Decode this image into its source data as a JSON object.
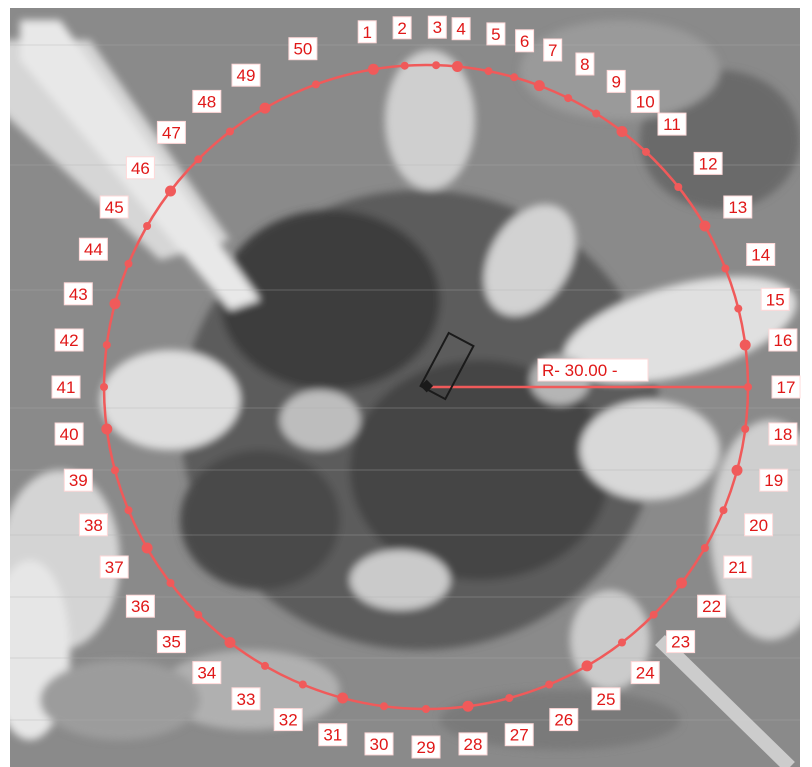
{
  "image": {
    "description_kind": "grayscale aerial photo with circular sampling overlay",
    "overlay_color": "#f05a5a",
    "label_color": "#e01818",
    "label_bg": "#ffffff"
  },
  "circle": {
    "radius_label": "R- 30.00 -"
  },
  "points": [
    {
      "label": "1",
      "angle_deg": -99.4
    },
    {
      "label": "2",
      "angle_deg": -93.8
    },
    {
      "label": "3",
      "angle_deg": -88.2
    },
    {
      "label": "4",
      "angle_deg": -84.4
    },
    {
      "label": "5",
      "angle_deg": -78.8
    },
    {
      "label": "6",
      "angle_deg": -74.1
    },
    {
      "label": "7",
      "angle_deg": -69.4
    },
    {
      "label": "8",
      "angle_deg": -63.8
    },
    {
      "label": "9",
      "angle_deg": -58.1
    },
    {
      "label": "10",
      "angle_deg": -52.5
    },
    {
      "label": "11",
      "angle_deg": -46.9
    },
    {
      "label": "12",
      "angle_deg": -38.4
    },
    {
      "label": "13",
      "angle_deg": -30.0
    },
    {
      "label": "14",
      "angle_deg": -21.6
    },
    {
      "label": "15",
      "angle_deg": -14.1
    },
    {
      "label": "16",
      "angle_deg": -7.5
    },
    {
      "label": "17",
      "angle_deg": 0.0
    },
    {
      "label": "18",
      "angle_deg": 7.5
    },
    {
      "label": "19",
      "angle_deg": 15.0
    },
    {
      "label": "20",
      "angle_deg": 22.5
    },
    {
      "label": "21",
      "angle_deg": 30.0
    },
    {
      "label": "22",
      "angle_deg": 37.5
    },
    {
      "label": "23",
      "angle_deg": 45.0
    },
    {
      "label": "24",
      "angle_deg": 52.5
    },
    {
      "label": "25",
      "angle_deg": 60.0
    },
    {
      "label": "26",
      "angle_deg": 67.5
    },
    {
      "label": "27",
      "angle_deg": 75.0
    },
    {
      "label": "28",
      "angle_deg": 82.5
    },
    {
      "label": "29",
      "angle_deg": 90.0
    },
    {
      "label": "30",
      "angle_deg": 97.5
    },
    {
      "label": "31",
      "angle_deg": 105.0
    },
    {
      "label": "32",
      "angle_deg": 112.5
    },
    {
      "label": "33",
      "angle_deg": 120.0
    },
    {
      "label": "34",
      "angle_deg": 127.5
    },
    {
      "label": "35",
      "angle_deg": 135.0
    },
    {
      "label": "36",
      "angle_deg": 142.5
    },
    {
      "label": "37",
      "angle_deg": 150.0
    },
    {
      "label": "38",
      "angle_deg": 157.5
    },
    {
      "label": "39",
      "angle_deg": 165.0
    },
    {
      "label": "40",
      "angle_deg": 172.5
    },
    {
      "label": "41",
      "angle_deg": 180.0
    },
    {
      "label": "42",
      "angle_deg": 187.5
    },
    {
      "label": "43",
      "angle_deg": 195.0
    },
    {
      "label": "44",
      "angle_deg": 202.5
    },
    {
      "label": "45",
      "angle_deg": 210.0
    },
    {
      "label": "46",
      "angle_deg": 217.5
    },
    {
      "label": "47",
      "angle_deg": 225.0
    },
    {
      "label": "48",
      "angle_deg": 232.5
    },
    {
      "label": "49",
      "angle_deg": 240.0
    },
    {
      "label": "50",
      "angle_deg": 250.0
    }
  ]
}
